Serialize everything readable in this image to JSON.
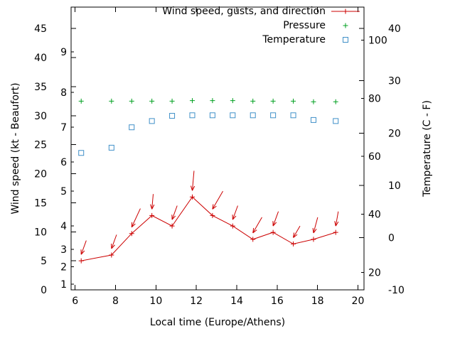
{
  "figure": {
    "background": "#ffffff",
    "frame_color": "#000000",
    "wind_color": "#cc0000",
    "pressure_color": "#00a020",
    "temperature_color": "#4090c8"
  },
  "legend": {
    "items": [
      {
        "label": "Wind speed, gusts, and direction",
        "color": "#cc0000",
        "marker": "line-plus"
      },
      {
        "label": "Pressure",
        "color": "#00a020",
        "marker": "plus"
      },
      {
        "label": "Temperature",
        "color": "#4090c8",
        "marker": "open-square"
      }
    ]
  },
  "axes": {
    "x": {
      "label": "Local time (Europe/Athens)",
      "range": [
        5.8,
        20.3
      ],
      "ticks": [
        6,
        8,
        10,
        12,
        14,
        16,
        18,
        20
      ]
    },
    "y_left": {
      "label": "Wind speed (kt - Beaufort)",
      "kt_range": [
        0,
        48.7
      ],
      "kt_ticks": [
        0,
        5,
        10,
        15,
        20,
        25,
        30,
        35,
        40,
        45
      ],
      "beaufort_ticks": [
        {
          "label": "1",
          "kt": 1
        },
        {
          "label": "2",
          "kt": 4
        },
        {
          "label": "3",
          "kt": 7
        },
        {
          "label": "4",
          "kt": 11
        },
        {
          "label": "5",
          "kt": 17
        },
        {
          "label": "6",
          "kt": 22
        },
        {
          "label": "7",
          "kt": 28
        },
        {
          "label": "8",
          "kt": 34
        },
        {
          "label": "9",
          "kt": 41
        }
      ]
    },
    "y_right": {
      "label": "Temperature (C - F)",
      "c_range": [
        -10,
        44.1
      ],
      "c_ticks": [
        -10,
        0,
        10,
        20,
        30,
        40
      ],
      "f_ticks": [
        20,
        40,
        60,
        80,
        100
      ]
    }
  },
  "chart_data": {
    "type": "line",
    "title": "",
    "xlabel": "Local time (Europe/Athens)",
    "ylabel_left": "Wind speed (kt - Beaufort)",
    "ylabel_right": "Temperature (C - F)",
    "x_hours": [
      6.3,
      7.8,
      8.8,
      9.8,
      10.8,
      11.8,
      12.8,
      13.8,
      14.8,
      15.8,
      16.8,
      17.8,
      18.9
    ],
    "series": [
      {
        "name": "wind_speed_kt",
        "display": "Wind speed (kt)",
        "color": "#cc0000",
        "values": [
          5,
          6,
          9.7,
          12.8,
          11,
          16,
          12.8,
          11,
          8.7,
          9.9,
          7.9,
          8.7,
          9.9
        ]
      },
      {
        "name": "wind_gust_kt",
        "display": "Wind gusts (kt, arrow tails)",
        "color": "#cc0000",
        "values": [
          8.5,
          9.5,
          14,
          16.5,
          14.5,
          20.5,
          17,
          14.5,
          12.5,
          13.5,
          11,
          12.5,
          13.5
        ]
      },
      {
        "name": "wind_dir_deg",
        "display": "Wind direction (deg, arrow heading)",
        "values": [
          200,
          200,
          205,
          185,
          200,
          185,
          210,
          200,
          210,
          200,
          210,
          195,
          190
        ]
      },
      {
        "name": "temperature_c",
        "display": "Temperature (C)",
        "color": "#4090c8",
        "values": [
          16.2,
          17.2,
          21.1,
          22.3,
          23.3,
          23.4,
          23.4,
          23.4,
          23.4,
          23.4,
          23.4,
          22.5,
          22.3
        ]
      },
      {
        "name": "pressure_level",
        "display": "Pressure (plotted level on left-axis units; pressure axis not labeled)",
        "color": "#00a020",
        "values": [
          32.5,
          32.5,
          32.5,
          32.5,
          32.5,
          32.6,
          32.6,
          32.6,
          32.5,
          32.5,
          32.5,
          32.4,
          32.4
        ]
      }
    ],
    "legend_position": "top-right-inside",
    "grid": false
  }
}
